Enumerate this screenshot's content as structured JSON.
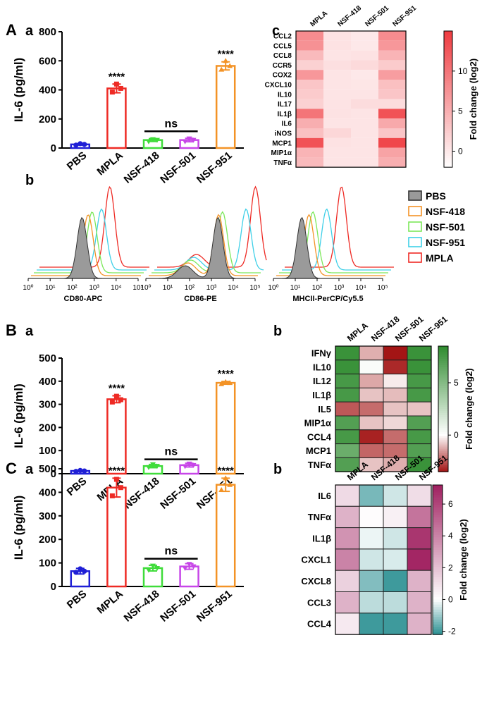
{
  "figure": {
    "panel_letters": [
      "A",
      "B",
      "C"
    ],
    "sub_letters": {
      "A_a": "a",
      "A_b": "b",
      "A_c": "c",
      "B_a": "a",
      "B_b": "b",
      "C_a": "a",
      "C_b": "b"
    },
    "colors": {
      "PBS": "#1f1fd6",
      "MPLA": "#ee2a24",
      "NSF-418": "#3fdc3a",
      "NSF-501": "#c746e8",
      "NSF-951": "#f39326"
    }
  },
  "chart_data": [
    {
      "id": "A_a",
      "type": "bar",
      "ylabel": "IL-6 (pg/ml)",
      "categories": [
        "PBS",
        "MPLA",
        "NSF-418",
        "NSF-501",
        "NSF-951"
      ],
      "values": [
        25,
        410,
        55,
        55,
        565
      ],
      "errors": [
        5,
        30,
        10,
        12,
        28
      ],
      "points": [
        [
          20,
          25,
          30
        ],
        [
          385,
          410,
          440
        ],
        [
          45,
          55,
          60
        ],
        [
          45,
          55,
          65
        ],
        [
          540,
          565,
          600
        ]
      ],
      "ylim": [
        0,
        800
      ],
      "yticks": [
        0,
        200,
        400,
        600,
        800
      ],
      "annotations": {
        "MPLA": "****",
        "NSF-951": "****"
      },
      "ns_label": "ns",
      "ns_between": [
        "NSF-418",
        "NSF-501"
      ],
      "ns_y": 115
    },
    {
      "id": "B_a",
      "type": "bar",
      "ylabel": "IL-6 (pg/ml)",
      "categories": [
        "PBS",
        "MPLA",
        "NSF-418",
        "NSF-501",
        "NSF-951"
      ],
      "values": [
        12,
        322,
        33,
        37,
        393
      ],
      "errors": [
        3,
        15,
        7,
        8,
        6
      ],
      "points": [
        [
          10,
          12,
          14
        ],
        [
          310,
          320,
          335
        ],
        [
          28,
          33,
          40
        ],
        [
          32,
          37,
          43
        ],
        [
          388,
          393,
          397
        ]
      ],
      "ylim": [
        0,
        500
      ],
      "yticks": [
        0,
        100,
        200,
        300,
        400,
        500
      ],
      "annotations": {
        "MPLA": "****",
        "NSF-951": "****"
      },
      "ns_label": "ns",
      "ns_between": [
        "NSF-418",
        "NSF-501"
      ],
      "ns_y": 62
    },
    {
      "id": "C_a",
      "type": "bar",
      "ylabel": "IL-6 (pg/ml)",
      "categories": [
        "PBS",
        "MPLA",
        "NSF-418",
        "NSF-501",
        "NSF-951"
      ],
      "values": [
        65,
        420,
        78,
        85,
        432
      ],
      "errors": [
        12,
        40,
        12,
        12,
        28
      ],
      "points": [
        [
          60,
          65,
          75
        ],
        [
          385,
          420,
          455
        ],
        [
          70,
          78,
          88
        ],
        [
          78,
          85,
          95
        ],
        [
          410,
          432,
          460
        ]
      ],
      "ylim": [
        0,
        500
      ],
      "yticks": [
        0,
        100,
        200,
        300,
        400,
        500
      ],
      "annotations": {
        "MPLA": "****",
        "NSF-951": "****"
      },
      "ns_label": "ns",
      "ns_between": [
        "NSF-418",
        "NSF-501"
      ],
      "ns_y": 118
    },
    {
      "id": "A_c",
      "type": "heatmap",
      "columns": [
        "MPLA",
        "NSF-418",
        "NSF-501",
        "NSF-951"
      ],
      "rows": [
        "CCL2",
        "CCL5",
        "CCL8",
        "CCR5",
        "COX2",
        "CXCL10",
        "IL10",
        "IL17",
        "IL1β",
        "IL6",
        "iNOS",
        "MCP1",
        "MIP1α",
        "TNFα"
      ],
      "values": [
        [
          8,
          0.5,
          0,
          8
        ],
        [
          7.5,
          0.5,
          0,
          7
        ],
        [
          4,
          0.3,
          0.5,
          4.5
        ],
        [
          2,
          0.8,
          1.2,
          2.5
        ],
        [
          7,
          0.3,
          0,
          6.5
        ],
        [
          3,
          0.3,
          0.2,
          3.5
        ],
        [
          2.5,
          0.3,
          0.3,
          3
        ],
        [
          2,
          0.4,
          1,
          1
        ],
        [
          10,
          0.5,
          0.3,
          13
        ],
        [
          5,
          0.3,
          0.3,
          5.5
        ],
        [
          3.5,
          1.5,
          0.3,
          3
        ],
        [
          13,
          0.5,
          0.3,
          14
        ],
        [
          4.5,
          0.3,
          0.3,
          6
        ],
        [
          4,
          0.3,
          0.3,
          5
        ]
      ],
      "colorbar_label": "Fold change (log2)",
      "colorbar_ticks": [
        0,
        5,
        10
      ],
      "vmin": -2,
      "vmax": 15,
      "colors": {
        "low": "#ffffff",
        "high": "#ef3b40"
      }
    },
    {
      "id": "B_b",
      "type": "heatmap",
      "columns": [
        "MPLA",
        "NSF-418",
        "NSF-501",
        "NSF-951"
      ],
      "rows": [
        "IFNγ",
        "IL10",
        "IL12",
        "IL1β",
        "IL5",
        "MIP1α",
        "CCL4",
        "MCP1",
        "TNFα"
      ],
      "values": [
        [
          8,
          -1.2,
          -3.5,
          8
        ],
        [
          8,
          0.2,
          -3.2,
          8
        ],
        [
          7.5,
          -1.3,
          -0.3,
          7.5
        ],
        [
          7.5,
          -0.9,
          -1,
          7.5
        ],
        [
          -2.5,
          -2.2,
          -0.9,
          -0.9
        ],
        [
          7,
          -0.9,
          -0.6,
          7
        ],
        [
          7.5,
          -3.3,
          -2.2,
          7.5
        ],
        [
          6,
          -2.3,
          -2.2,
          7
        ],
        [
          7,
          -0.9,
          -1.2,
          8
        ]
      ],
      "colorbar_label": "Fold change (log2)",
      "colorbar_ticks": [
        0,
        5
      ],
      "vmin": -3.5,
      "vmax": 8.5,
      "colors": {
        "low": "#a31515",
        "mid": "#ffffff",
        "high": "#2e8b2e"
      }
    },
    {
      "id": "C_b",
      "type": "heatmap",
      "columns": [
        "MPLA",
        "NSF-418",
        "NSF-501",
        "NSF-951"
      ],
      "rows": [
        "IL6",
        "TNFα",
        "IL1β",
        "CXCL1",
        "CXCL8",
        "CCL3",
        "CCL4"
      ],
      "values": [
        [
          1.2,
          -1.4,
          -0.5,
          1.1
        ],
        [
          2.5,
          0.1,
          0.5,
          4.5
        ],
        [
          3.5,
          -0.2,
          -0.5,
          6.5
        ],
        [
          4,
          -0.5,
          -0.4,
          7
        ],
        [
          1.5,
          -1.3,
          -2,
          2.5
        ],
        [
          2.5,
          -0.7,
          -0.7,
          2.5
        ],
        [
          0.7,
          -2,
          -2,
          2.5
        ]
      ],
      "colorbar_label": "Fold change (log2)",
      "colorbar_ticks": [
        -2,
        0,
        2,
        4,
        6
      ],
      "vmin": -2.2,
      "vmax": 7.2,
      "colors": {
        "low": "#2b9092",
        "mid": "#ffffff",
        "high": "#a02060"
      }
    },
    {
      "id": "A_b",
      "type": "histogram-overlay",
      "subplots": [
        {
          "xlabel": "CD80-APC",
          "peaks": {
            "PBS": 2.45,
            "NSF-418": 2.6,
            "NSF-501": 2.65,
            "NSF-951": 2.95,
            "MPLA": 3.2
          }
        },
        {
          "xlabel": "CD86-PE",
          "peaks": {
            "PBS": 3.3,
            "NSF-418": 3.2,
            "NSF-501": 3.25,
            "NSF-951": 4.2,
            "MPLA": 4.5
          }
        },
        {
          "xlabel": "MHCII-PerCP/Cy5.5",
          "peaks": {
            "PBS": 1.3,
            "NSF-418": 1.5,
            "NSF-501": 1.55,
            "NSF-951": 2.05,
            "MPLA": 2.6
          }
        }
      ],
      "xticks": [
        "10⁰",
        "10¹",
        "10²",
        "10³",
        "10⁴",
        "10⁵"
      ],
      "legend": [
        "PBS",
        "NSF-418",
        "NSF-501",
        "NSF-951",
        "MPLA"
      ],
      "legend_colors": {
        "PBS": "#888888",
        "NSF-418": "#f39326",
        "NSF-501": "#7ce85a",
        "NSF-951": "#3fd0e8",
        "MPLA": "#ee2a24"
      }
    }
  ]
}
